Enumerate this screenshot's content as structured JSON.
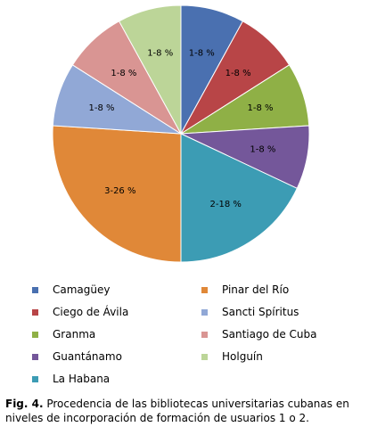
{
  "chart_data": {
    "type": "pie",
    "slices": [
      {
        "name": "Camagüey",
        "value": 8,
        "label": "1-8 %",
        "color": "#4a70b0"
      },
      {
        "name": "Ciego de Ávila",
        "value": 8,
        "label": "1-8 %",
        "color": "#b84547"
      },
      {
        "name": "Granma",
        "value": 8,
        "label": "1-8 %",
        "color": "#8fb046"
      },
      {
        "name": "Guantánamo",
        "value": 8,
        "label": "1-8 %",
        "color": "#74579a"
      },
      {
        "name": "La Habana",
        "value": 18,
        "label": "2-18 %",
        "color": "#3c9cb4"
      },
      {
        "name": "Pinar del Río",
        "value": 26,
        "label": "3-26 %",
        "color": "#e08838"
      },
      {
        "name": "Sancti Spíritus",
        "value": 8,
        "label": "1-8 %",
        "color": "#91a8d6"
      },
      {
        "name": "Santiago de Cuba",
        "value": 8,
        "label": "1-8 %",
        "color": "#d99593"
      },
      {
        "name": "Holguín",
        "value": 8,
        "label": "1-8 %",
        "color": "#bcd598"
      }
    ],
    "legend_placement": "bottom"
  },
  "caption": {
    "prefix": "Fig. 4.",
    "text": " Procedencia de las bibliotecas universitarias cubanas en niveles de incorporación de formación de usuarios 1 o 2."
  }
}
